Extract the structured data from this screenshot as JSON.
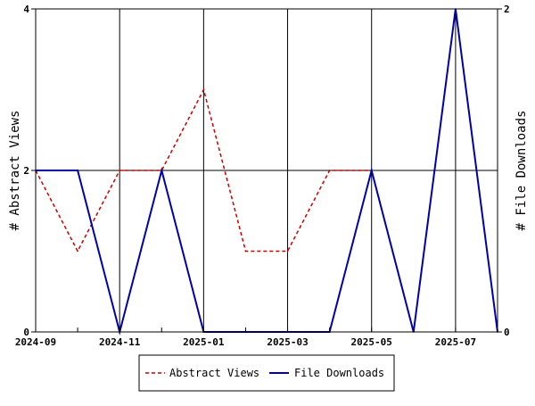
{
  "chart_data": {
    "type": "line",
    "x": [
      "2024-09",
      "2024-10",
      "2024-11",
      "2024-12",
      "2025-01",
      "2025-02",
      "2025-03",
      "2025-04",
      "2025-05",
      "2025-06",
      "2025-07",
      "2025-08"
    ],
    "x_tick_labels": [
      "2024-09",
      "2024-11",
      "2025-01",
      "2025-03",
      "2025-05",
      "2025-07"
    ],
    "ylabel_left": "# Abstract Views",
    "ylabel_right": "# File Downloads",
    "ylim_left": [
      0,
      4
    ],
    "ylim_right": [
      0,
      2
    ],
    "y_ticks_left": [
      "0",
      "2",
      "4"
    ],
    "y_ticks_right": [
      "0",
      "2"
    ],
    "grid": true,
    "legend_position": "bottom",
    "series": [
      {
        "name": "Abstract Views",
        "axis": "left",
        "color": "#cc0000",
        "style": "dashed",
        "values": [
          2,
          1,
          2,
          2,
          3,
          1,
          1,
          2,
          2,
          0,
          4,
          0
        ]
      },
      {
        "name": "File Downloads",
        "axis": "right",
        "color": "#0000aa",
        "style": "solid",
        "values": [
          1,
          1,
          0,
          1,
          0,
          0,
          0,
          0,
          1,
          0,
          2,
          0
        ]
      }
    ]
  }
}
